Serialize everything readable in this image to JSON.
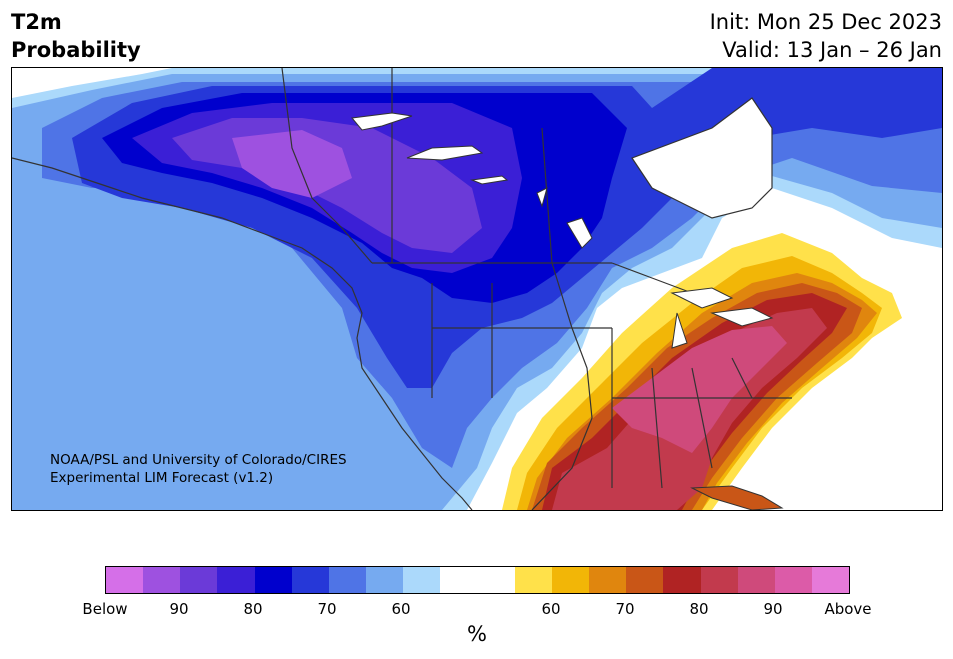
{
  "title": {
    "line1": "T2m",
    "line2": "Probability"
  },
  "dates": {
    "init": "Init: Mon 25 Dec 2023",
    "valid": "Valid: 13 Jan – 26 Jan"
  },
  "credit": {
    "line1": "NOAA/PSL and University of Colorado/CIRES",
    "line2": "Experimental LIM Forecast (v1.2)"
  },
  "colorbar": {
    "colors": [
      "#d56fe8",
      "#9e51e0",
      "#6b3ad8",
      "#3b1fd6",
      "#0000cd",
      "#2638d8",
      "#4f74e6",
      "#76aaf0",
      "#abd9fb",
      "#ffffff",
      "#ffffff",
      "#ffe14a",
      "#f2b607",
      "#e0860e",
      "#c95617",
      "#b02323",
      "#c23a4d",
      "#cf4a7b",
      "#dc5ba8",
      "#e67ad9"
    ],
    "labels": [
      "Below",
      "90",
      "80",
      "70",
      "60",
      "60",
      "70",
      "80",
      "90",
      "Above"
    ],
    "unit": "%"
  },
  "map": {
    "regions": [
      "North America",
      "Greenland",
      "Cuba"
    ],
    "below_color": "#0000cd",
    "above_color": "#c23a4d"
  }
}
